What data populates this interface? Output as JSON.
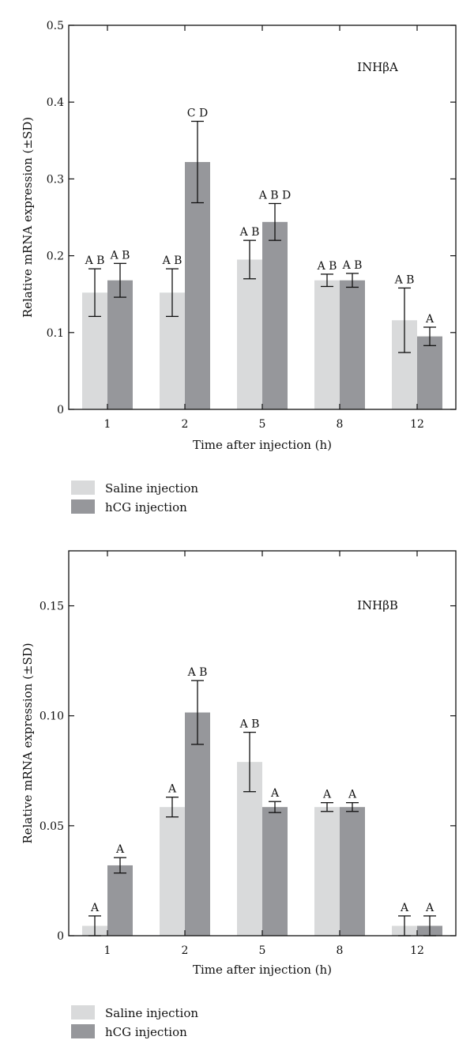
{
  "chart_data": [
    {
      "type": "bar",
      "title": "INHβA",
      "xlabel": "Time after injection (h)",
      "ylabel": "Relative mRNA expression (±SD)",
      "categories": [
        "1",
        "2",
        "5",
        "8",
        "12"
      ],
      "ylim": [
        0,
        0.5
      ],
      "yticks": [
        "0",
        "0.1",
        "0.2",
        "0.3",
        "0.4",
        "0.5"
      ],
      "ytick_values": [
        0,
        0.1,
        0.2,
        0.3,
        0.4,
        0.5
      ],
      "grid": false,
      "legend_position": "bottom-left",
      "series": [
        {
          "name": "Saline injection",
          "color": "#d9dadb",
          "values": [
            0.152,
            0.152,
            0.195,
            0.168,
            0.116
          ],
          "errors": [
            0.031,
            0.031,
            0.025,
            0.008,
            0.042
          ],
          "labels": [
            "A B",
            "A B",
            "A B",
            "A B",
            "A B"
          ]
        },
        {
          "name": "hCG injection",
          "color": "#96979b",
          "values": [
            0.168,
            0.322,
            0.244,
            0.168,
            0.095
          ],
          "errors": [
            0.022,
            0.053,
            0.024,
            0.009,
            0.012
          ],
          "labels": [
            "A B",
            "C D",
            "A B D",
            "A B",
            "A"
          ]
        }
      ]
    },
    {
      "type": "bar",
      "title": "INHβB",
      "xlabel": "Time after injection (h)",
      "ylabel": "Relative mRNA expression (±SD)",
      "categories": [
        "1",
        "2",
        "5",
        "8",
        "12"
      ],
      "ylim": [
        0,
        0.175
      ],
      "yticks": [
        "0",
        "0.05",
        "0.10",
        "0.15"
      ],
      "ytick_values": [
        0,
        0.05,
        0.1,
        0.15
      ],
      "grid": false,
      "legend_position": "bottom-left",
      "series": [
        {
          "name": "Saline injection",
          "color": "#d9dadb",
          "values": [
            0.0045,
            0.0585,
            0.079,
            0.0585,
            0.0045
          ],
          "errors": [
            0.0045,
            0.0045,
            0.0135,
            0.002,
            0.0045
          ],
          "labels": [
            "A",
            "A",
            "A B",
            "A",
            "A"
          ]
        },
        {
          "name": "hCG injection",
          "color": "#96979b",
          "values": [
            0.032,
            0.1015,
            0.0585,
            0.0585,
            0.0045
          ],
          "errors": [
            0.0035,
            0.0145,
            0.0025,
            0.002,
            0.0045
          ],
          "labels": [
            "A",
            "A B",
            "A",
            "A",
            "A"
          ]
        }
      ]
    }
  ]
}
